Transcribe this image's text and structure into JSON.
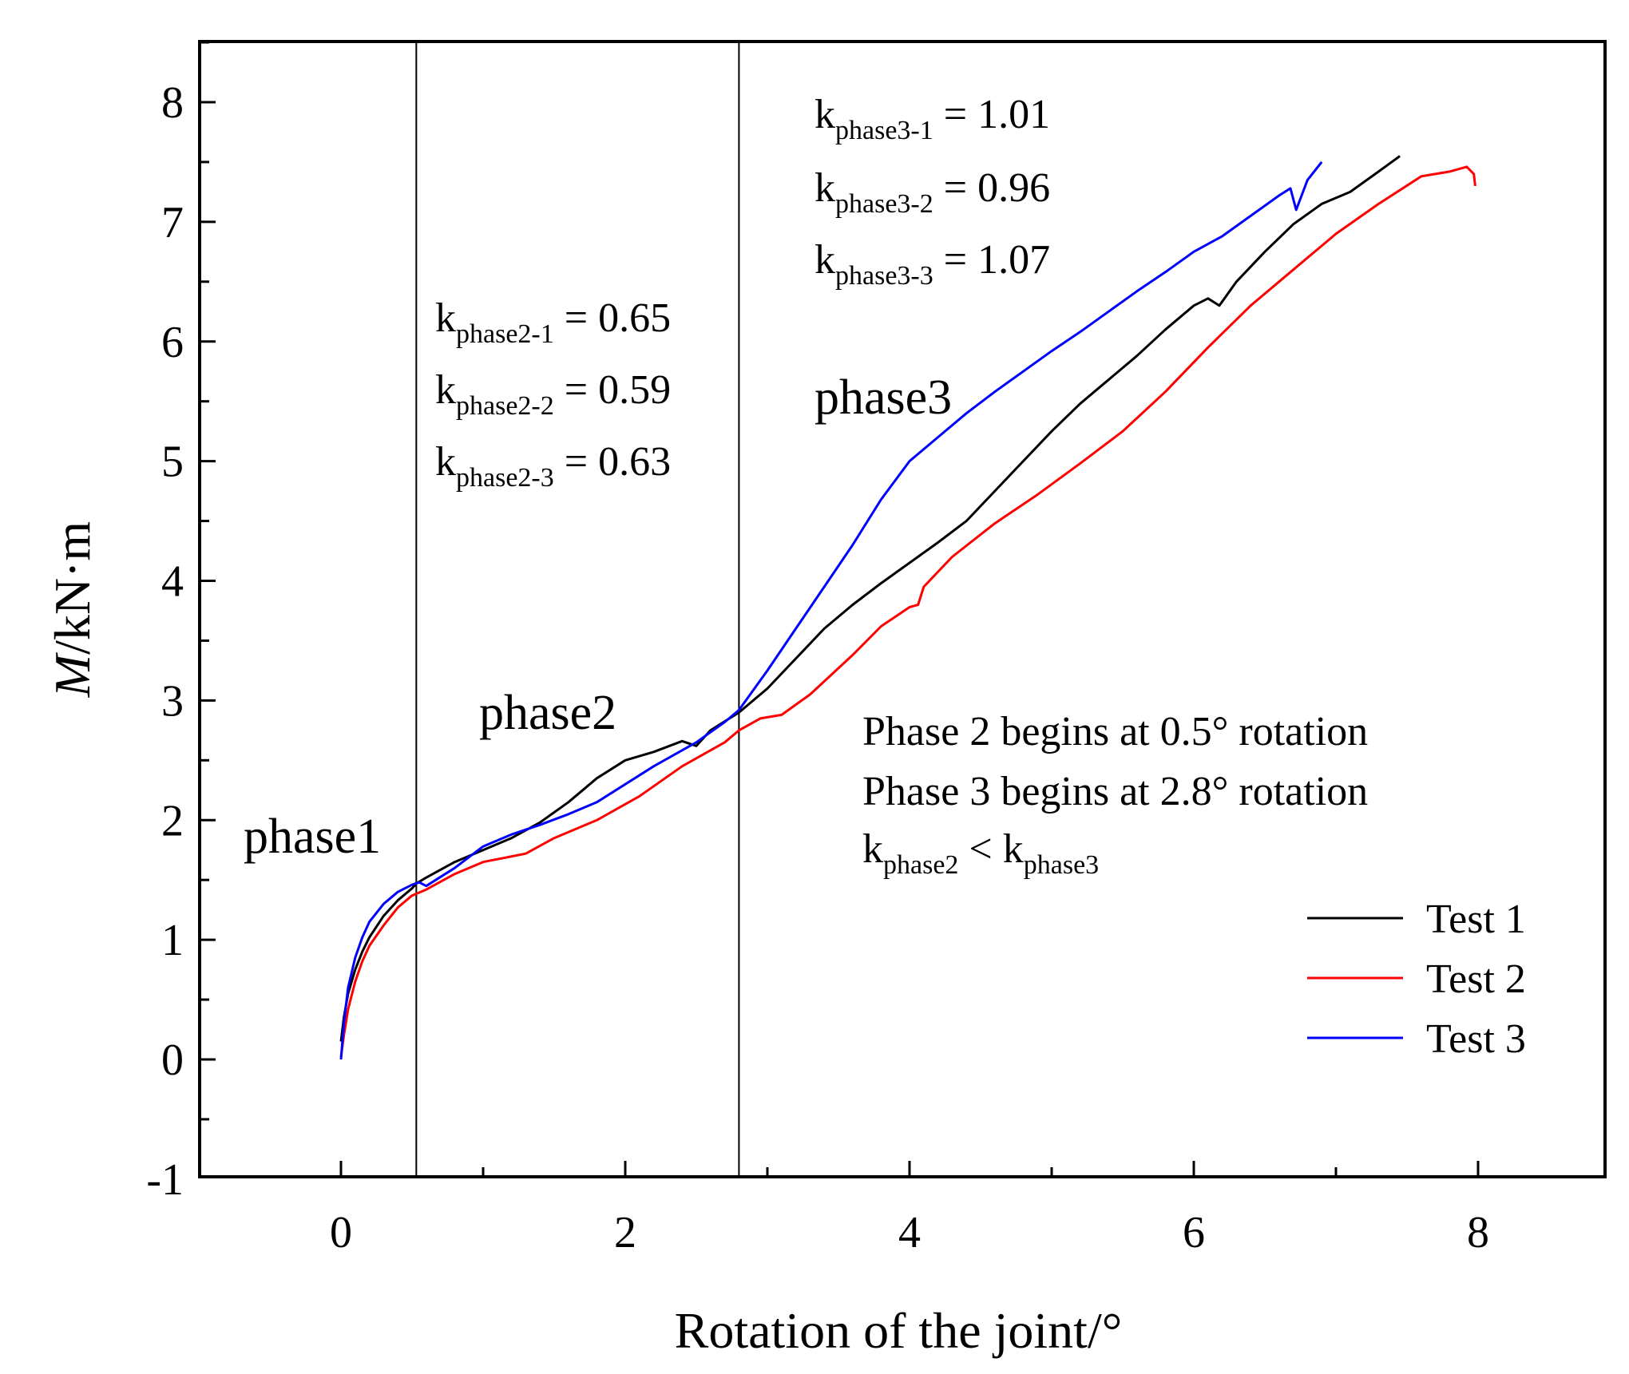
{
  "chart_data": {
    "type": "line",
    "title": "",
    "xlabel": "Rotation of the joint/°",
    "ylabel_italic": "M",
    "ylabel_rest": "/kN·m",
    "xlim": [
      -1,
      9
    ],
    "ylim": [
      -1,
      8.5
    ],
    "xticks": [
      0,
      2,
      4,
      6,
      8
    ],
    "yticks": [
      -1,
      0,
      1,
      2,
      3,
      4,
      5,
      6,
      7,
      8
    ],
    "vlines": [
      0.53,
      2.8
    ],
    "series": [
      {
        "name": "Test 1",
        "color": "#000000",
        "x": [
          0,
          0.02,
          0.05,
          0.1,
          0.15,
          0.2,
          0.3,
          0.4,
          0.5,
          0.53,
          0.6,
          0.8,
          1.0,
          1.2,
          1.4,
          1.6,
          1.8,
          2.0,
          2.2,
          2.4,
          2.5,
          2.6,
          2.8,
          3.0,
          3.2,
          3.4,
          3.6,
          3.8,
          4.0,
          4.2,
          4.4,
          4.6,
          4.8,
          5.0,
          5.2,
          5.4,
          5.6,
          5.8,
          6.0,
          6.1,
          6.18,
          6.3,
          6.5,
          6.7,
          6.9,
          7.1,
          7.3,
          7.45
        ],
        "y": [
          0.15,
          0.35,
          0.55,
          0.75,
          0.9,
          1.02,
          1.2,
          1.33,
          1.43,
          1.47,
          1.52,
          1.65,
          1.75,
          1.85,
          1.98,
          2.15,
          2.35,
          2.5,
          2.57,
          2.66,
          2.62,
          2.75,
          2.9,
          3.1,
          3.35,
          3.6,
          3.8,
          3.98,
          4.15,
          4.32,
          4.5,
          4.75,
          5.0,
          5.25,
          5.48,
          5.68,
          5.88,
          6.1,
          6.3,
          6.36,
          6.3,
          6.5,
          6.75,
          6.98,
          7.15,
          7.25,
          7.42,
          7.55
        ]
      },
      {
        "name": "Test 2",
        "color": "#ff0000",
        "x": [
          0,
          0.02,
          0.05,
          0.1,
          0.15,
          0.2,
          0.3,
          0.4,
          0.5,
          0.6,
          0.8,
          1.0,
          1.3,
          1.5,
          1.8,
          2.1,
          2.4,
          2.7,
          2.8,
          2.95,
          3.1,
          3.3,
          3.6,
          3.8,
          4.0,
          4.06,
          4.1,
          4.3,
          4.6,
          4.9,
          5.2,
          5.5,
          5.8,
          6.1,
          6.4,
          6.7,
          7.0,
          7.3,
          7.6,
          7.8,
          7.92,
          7.97,
          7.98
        ],
        "y": [
          0.02,
          0.2,
          0.42,
          0.65,
          0.82,
          0.95,
          1.12,
          1.27,
          1.37,
          1.42,
          1.55,
          1.65,
          1.72,
          1.85,
          2.0,
          2.2,
          2.45,
          2.65,
          2.75,
          2.85,
          2.88,
          3.05,
          3.38,
          3.62,
          3.78,
          3.8,
          3.95,
          4.2,
          4.48,
          4.72,
          4.98,
          5.25,
          5.58,
          5.95,
          6.3,
          6.6,
          6.9,
          7.15,
          7.38,
          7.42,
          7.46,
          7.4,
          7.3
        ]
      },
      {
        "name": "Test 3",
        "color": "#0000ff",
        "x": [
          0,
          0.02,
          0.05,
          0.1,
          0.15,
          0.2,
          0.3,
          0.4,
          0.5,
          0.55,
          0.6,
          0.8,
          1.0,
          1.2,
          1.4,
          1.6,
          1.8,
          2.0,
          2.2,
          2.5,
          2.7,
          2.8,
          3.0,
          3.2,
          3.4,
          3.6,
          3.8,
          4.0,
          4.2,
          4.4,
          4.6,
          4.8,
          5.0,
          5.2,
          5.4,
          5.6,
          5.8,
          6.0,
          6.2,
          6.4,
          6.6,
          6.68,
          6.72,
          6.8,
          6.9
        ],
        "y": [
          0.0,
          0.3,
          0.6,
          0.85,
          1.02,
          1.15,
          1.3,
          1.4,
          1.46,
          1.48,
          1.45,
          1.6,
          1.78,
          1.88,
          1.96,
          2.05,
          2.15,
          2.3,
          2.45,
          2.65,
          2.82,
          2.92,
          3.25,
          3.6,
          3.95,
          4.3,
          4.68,
          5.0,
          5.2,
          5.4,
          5.58,
          5.75,
          5.92,
          6.08,
          6.25,
          6.42,
          6.58,
          6.75,
          6.88,
          7.05,
          7.22,
          7.28,
          7.1,
          7.35,
          7.5
        ]
      }
    ],
    "annotations": {
      "phase1": "phase1",
      "phase2": "phase2",
      "phase3": "phase3",
      "k2": [
        {
          "k": "k",
          "sub": "phase2-1",
          "val": " = 0.65"
        },
        {
          "k": "k",
          "sub": "phase2-2",
          "val": " = 0.59"
        },
        {
          "k": "k",
          "sub": "phase2-3",
          "val": " = 0.63"
        }
      ],
      "k3": [
        {
          "k": "k",
          "sub": "phase3-1",
          "val": " = 1.01"
        },
        {
          "k": "k",
          "sub": "phase3-2",
          "val": " = 0.96"
        },
        {
          "k": "k",
          "sub": "phase3-3",
          "val": " = 1.07"
        }
      ],
      "note1": "Phase 2 begins at 0.5° rotation",
      "note2": "Phase 3 begins at 2.8° rotation",
      "note3": {
        "k1": "k",
        "sub1": "phase2",
        "op": " < ",
        "k2": "k",
        "sub2": "phase3"
      }
    },
    "legend_position": "bottom-right"
  }
}
